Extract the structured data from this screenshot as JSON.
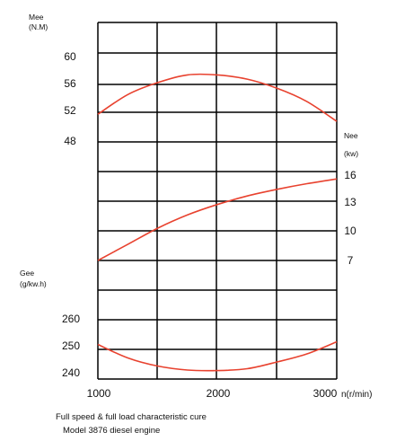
{
  "colors": {
    "curve": "#e8422f",
    "grid": "#000000"
  },
  "caption": {
    "line1": "Full speed & full load characteristic cure",
    "line2": "Model 3876 diesel engine"
  },
  "chart_data": {
    "type": "line",
    "x_axis": {
      "label": "n(r/min)",
      "ticks": [
        "1000",
        "2000",
        "3000"
      ],
      "range": [
        1000,
        3000
      ]
    },
    "panels": [
      {
        "name": "Mee",
        "unit": "(N.M)",
        "ticks": [
          "60",
          "56",
          "52",
          "48"
        ],
        "series": {
          "name": "Mee",
          "x": [
            1000,
            1250,
            1500,
            1750,
            2000,
            2250,
            2500,
            2750,
            3000
          ],
          "y": [
            51.8,
            54.6,
            56.3,
            57.4,
            57.4,
            56.8,
            55.5,
            53.6,
            50.8
          ]
        }
      },
      {
        "name": "Nee",
        "unit": "(kw)",
        "ticks": [
          "16",
          "13",
          "10",
          "7"
        ],
        "series": {
          "name": "Nee",
          "x": [
            1000,
            1250,
            1500,
            1750,
            2000,
            2250,
            2500,
            2750,
            3000
          ],
          "y": [
            7.0,
            8.7,
            10.4,
            11.8,
            12.9,
            13.8,
            14.5,
            15.1,
            15.6
          ]
        }
      },
      {
        "name": "Gee",
        "unit": "(g/kw.h)",
        "ticks": [
          "260",
          "250",
          "240"
        ],
        "series": {
          "name": "Gee",
          "x": [
            1000,
            1250,
            1500,
            1750,
            2000,
            2250,
            2500,
            2750,
            3000
          ],
          "y": [
            250.5,
            245.5,
            242.5,
            241.0,
            240.8,
            241.5,
            244.0,
            247.0,
            251.5
          ]
        }
      }
    ]
  }
}
